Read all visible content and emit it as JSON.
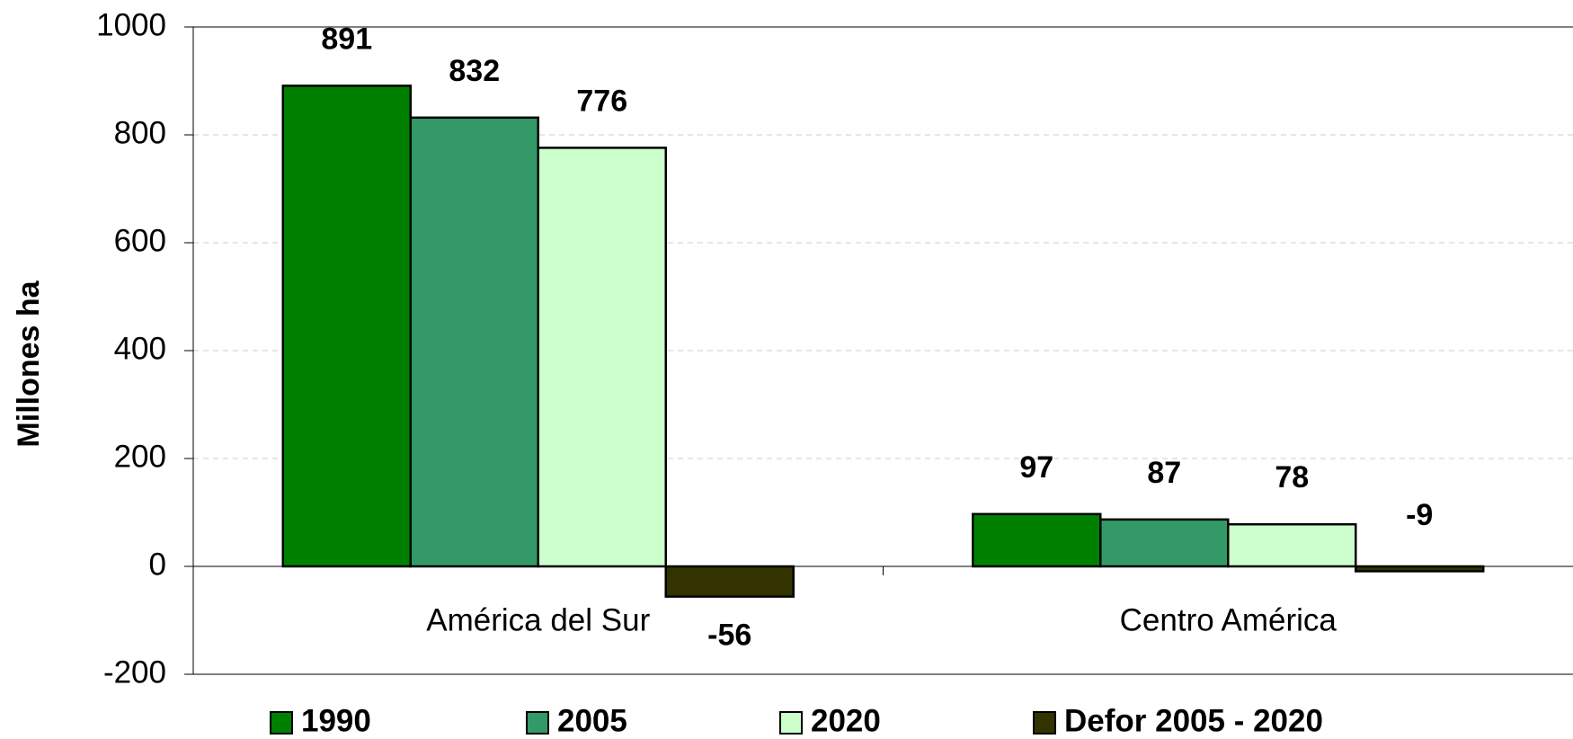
{
  "chart_data": {
    "type": "bar",
    "y_label": "Millones ha",
    "categories": [
      "América del Sur",
      "Centro América"
    ],
    "series": [
      {
        "name": "1990",
        "color": "#008000",
        "values": [
          891,
          97
        ]
      },
      {
        "name": "2005",
        "color": "#339966",
        "values": [
          832,
          87
        ]
      },
      {
        "name": "2020",
        "color": "#ccffcc",
        "values": [
          776,
          78
        ]
      },
      {
        "name": "Defor 2005 - 2020",
        "color": "#333300",
        "values": [
          -56,
          -9
        ]
      }
    ],
    "ylim": [
      -200,
      1000
    ],
    "yticks": [
      -200,
      0,
      200,
      400,
      600,
      800,
      1000
    ],
    "grid": true,
    "legend": "bottom"
  }
}
